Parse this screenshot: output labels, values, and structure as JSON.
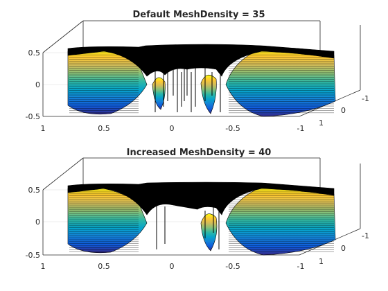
{
  "chart_data": [
    {
      "type": "surface",
      "title": "Default MeshDensity = 35",
      "mesh_density": 35,
      "xlim": [
        -1,
        1
      ],
      "ylim": [
        -1,
        1
      ],
      "zlim": [
        -0.5,
        0.5
      ],
      "x_ticks": [
        "1",
        "0.5",
        "0",
        "-0.5",
        "-1"
      ],
      "y_ticks": [
        "-1",
        "0",
        "1"
      ],
      "z_ticks": [
        "0.5",
        "0",
        "-0.5"
      ],
      "grid": true,
      "colormap": "parula",
      "edge_color": "#000000"
    },
    {
      "type": "surface",
      "title": "Increased MeshDensity = 40",
      "mesh_density": 40,
      "xlim": [
        -1,
        1
      ],
      "ylim": [
        -1,
        1
      ],
      "zlim": [
        -0.5,
        0.5
      ],
      "x_ticks": [
        "1",
        "0.5",
        "0",
        "-0.5",
        "-1"
      ],
      "y_ticks": [
        "-1",
        "0",
        "1"
      ],
      "z_ticks": [
        "0.5",
        "0",
        "-0.5"
      ],
      "grid": true,
      "colormap": "parula",
      "edge_color": "#000000"
    }
  ],
  "colormap_stops": [
    "#352a87",
    "#0f5cdd",
    "#1481d6",
    "#06a4ca",
    "#2eb7a4",
    "#87bf77",
    "#d1bb59",
    "#fec832",
    "#f9fb0e"
  ]
}
